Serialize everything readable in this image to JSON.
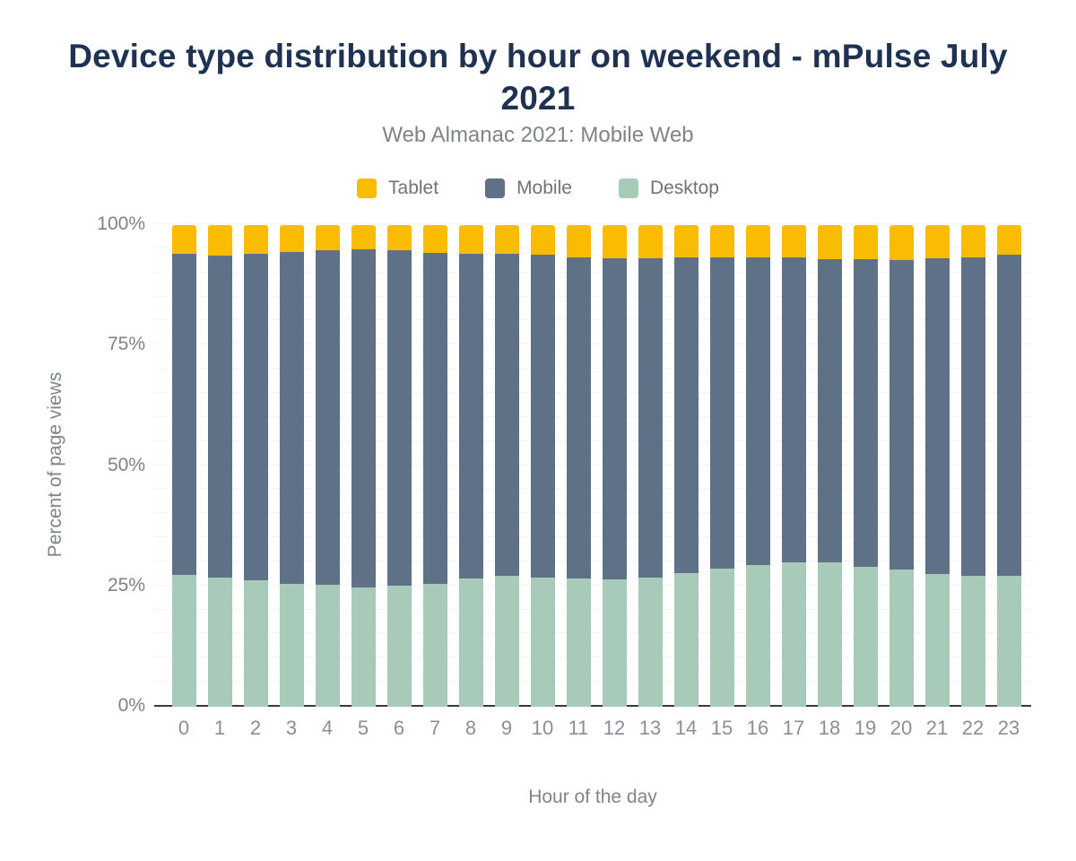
{
  "chart_data": {
    "type": "bar",
    "stacked": true,
    "percent_stacked": true,
    "title": "Device type distribution by hour on weekend - mPulse July 2021",
    "subtitle": "Web Almanac 2021: Mobile Web",
    "xlabel": "Hour of the day",
    "ylabel": "Percent of page views",
    "categories": [
      "0",
      "1",
      "2",
      "3",
      "4",
      "5",
      "6",
      "7",
      "8",
      "9",
      "10",
      "11",
      "12",
      "13",
      "14",
      "15",
      "16",
      "17",
      "18",
      "19",
      "20",
      "21",
      "22",
      "23"
    ],
    "ylim": [
      0,
      100
    ],
    "y_tick_values": [
      0,
      25,
      50,
      75,
      100
    ],
    "y_tick_labels": [
      "0%",
      "25%",
      "50%",
      "75%",
      "100%"
    ],
    "gridlines_every_percent": 5,
    "grid": "horizontal",
    "legend_position": "top",
    "stack_order_bottom_to_top": [
      "Desktop",
      "Mobile",
      "Tablet"
    ],
    "series": [
      {
        "name": "Tablet",
        "color": "#FABB03",
        "values": [
          6.0,
          6.3,
          6.0,
          5.6,
          5.2,
          5.0,
          5.2,
          5.8,
          6.0,
          6.0,
          6.2,
          6.7,
          6.9,
          6.9,
          6.7,
          6.7,
          6.7,
          6.7,
          7.1,
          7.1,
          7.3,
          6.9,
          6.7,
          6.2
        ]
      },
      {
        "name": "Mobile",
        "color": "#5F7187",
        "values": [
          66.6,
          66.9,
          67.7,
          68.8,
          69.4,
          70.2,
          69.7,
          68.6,
          67.4,
          66.9,
          66.9,
          66.7,
          66.7,
          66.2,
          65.5,
          64.6,
          63.8,
          63.4,
          63.0,
          63.8,
          64.2,
          65.5,
          66.1,
          66.6
        ]
      },
      {
        "name": "Desktop",
        "color": "#A7CBB8",
        "values": [
          27.4,
          26.8,
          26.3,
          25.6,
          25.4,
          24.8,
          25.1,
          25.6,
          26.6,
          27.1,
          26.9,
          26.6,
          26.4,
          26.9,
          27.8,
          28.7,
          29.5,
          29.9,
          29.9,
          29.1,
          28.5,
          27.6,
          27.2,
          27.2
        ]
      }
    ]
  },
  "style": {
    "title_color": "#1F3251",
    "subtitle_color": "#7E8487",
    "tick_label_color": "#818181",
    "axis_title_color": "#7E8487",
    "gridline_color": "#F4F4F4",
    "baseline_color": "#3B3B3B",
    "background_color": "#FFFFFF"
  }
}
